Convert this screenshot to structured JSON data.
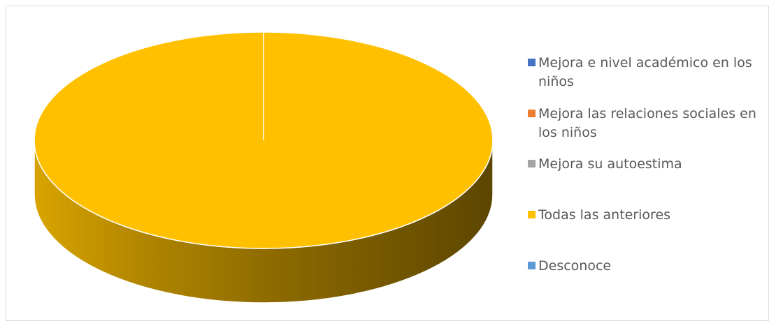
{
  "chart_data": {
    "type": "pie",
    "title": "",
    "categories": [
      "Mejora e nivel académico en los niños",
      "Mejora las relaciones sociales en los niños",
      "Mejora su autoestima",
      "Todas las anteriores",
      "Desconoce"
    ],
    "values": [
      0,
      0,
      0,
      100,
      0
    ],
    "colors": [
      "#4472c4",
      "#ed7d31",
      "#a5a5a5",
      "#ffc000",
      "#5b9bd5"
    ],
    "legend_position": "right",
    "style": "3d"
  }
}
